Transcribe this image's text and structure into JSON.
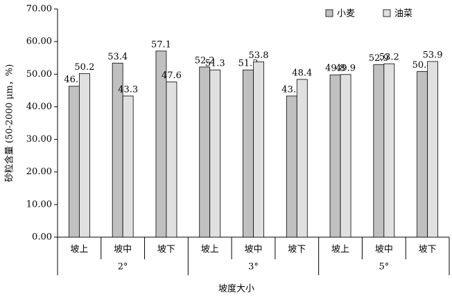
{
  "chart_data": {
    "type": "bar",
    "y_label": "砂粒含量 (50-2000 μm，%)",
    "x_label": "坡度大小",
    "categories": [
      "坡上",
      "坡中",
      "坡下",
      "坡上",
      "坡中",
      "坡下",
      "坡上",
      "坡中",
      "坡下"
    ],
    "group_labels": [
      "2°",
      "3°",
      "5°"
    ],
    "series": [
      {
        "name": "小麦",
        "color": "#c0c0c0",
        "values": [
          46.3,
          53.4,
          57.1,
          52.2,
          51.3,
          43.3,
          49.8,
          52.9,
          50.8
        ]
      },
      {
        "name": "油菜",
        "color": "#e0e0e0",
        "values": [
          50.2,
          43.3,
          47.6,
          51.3,
          53.8,
          48.4,
          49.9,
          53.2,
          53.9
        ]
      }
    ],
    "ylim": [
      0,
      70
    ],
    "yticks": [
      {
        "value": 0,
        "label": "0.00"
      },
      {
        "value": 10,
        "label": "10.00"
      },
      {
        "value": 20,
        "label": "20.00"
      },
      {
        "value": 30,
        "label": "30.00"
      },
      {
        "value": 40,
        "label": "40.00"
      },
      {
        "value": 50,
        "label": "50.00"
      },
      {
        "value": 60,
        "label": "60.00"
      },
      {
        "value": 70,
        "label": "70.00"
      }
    ],
    "legend": "top-right"
  }
}
